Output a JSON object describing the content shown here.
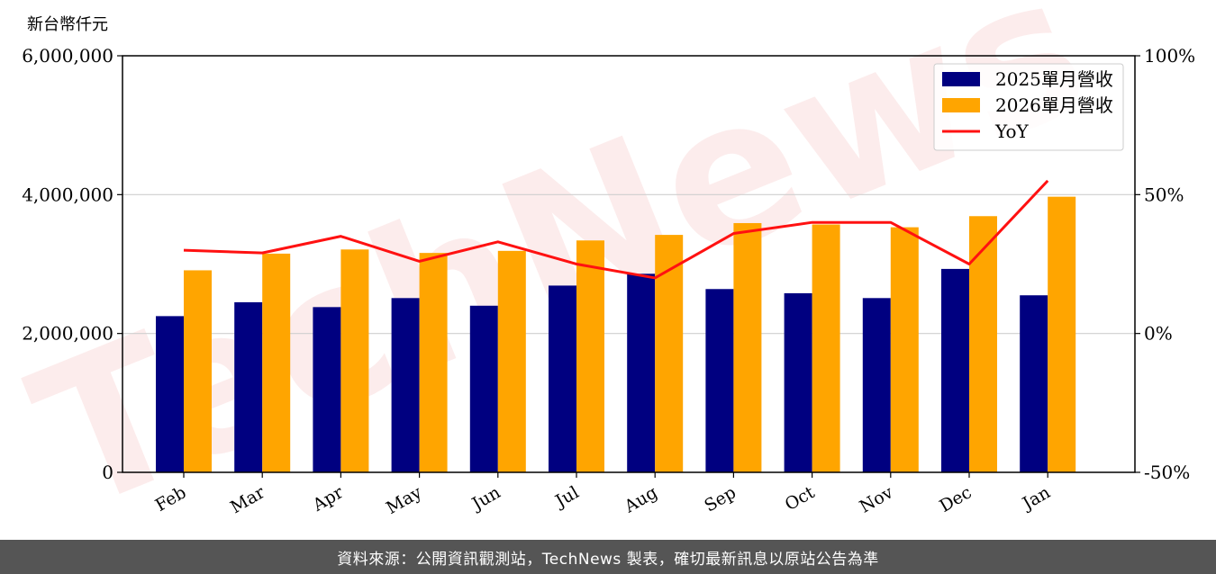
{
  "chart_data": {
    "type": "bar",
    "unit_label": "新台幣仟元",
    "categories": [
      "Feb",
      "Mar",
      "Apr",
      "May",
      "Jun",
      "Jul",
      "Aug",
      "Sep",
      "Oct",
      "Nov",
      "Dec",
      "Jan"
    ],
    "series": [
      {
        "name": "2025單月營收",
        "type": "bar",
        "color": "#000080",
        "values": [
          2250000,
          2450000,
          2380000,
          2510000,
          2400000,
          2690000,
          2860000,
          2640000,
          2580000,
          2510000,
          2930000,
          2550000
        ]
      },
      {
        "name": "2026單月營收",
        "type": "bar",
        "color": "#FFA500",
        "values": [
          2910000,
          3150000,
          3210000,
          3160000,
          3190000,
          3340000,
          3420000,
          3590000,
          3570000,
          3530000,
          3690000,
          3970000
        ]
      },
      {
        "name": "YoY",
        "type": "line",
        "color": "#FF1111",
        "axis": "right",
        "values": [
          30,
          29,
          35,
          26,
          33,
          25,
          20,
          36,
          40,
          40,
          25,
          55
        ]
      }
    ],
    "y_left": {
      "min": 0,
      "max": 6000000,
      "ticks": [
        0,
        2000000,
        4000000,
        6000000
      ],
      "tick_labels": [
        "0",
        "2,000,000",
        "4,000,000",
        "6,000,000"
      ]
    },
    "y_right": {
      "min": -50,
      "max": 100,
      "ticks": [
        -50,
        0,
        50,
        100
      ],
      "tick_labels": [
        "-50%",
        "0%",
        "50%",
        "100%"
      ]
    },
    "grid": "horizontal",
    "legend_position": "top-right",
    "watermark": "TechNews"
  },
  "footer": {
    "text": "資料來源：公開資訊觀測站，TechNews 製表，確切最新訊息以原站公告為準"
  }
}
